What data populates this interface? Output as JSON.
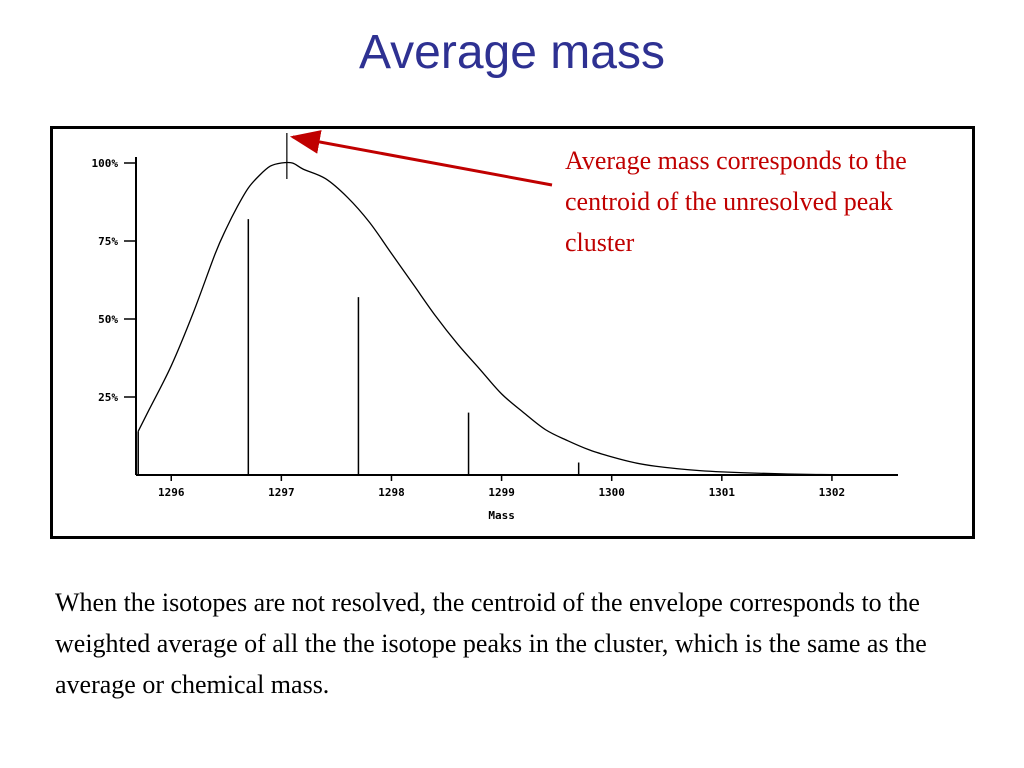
{
  "title": "Average mass",
  "annotation": "Average mass corresponds to the centroid of the unresolved peak cluster",
  "caption": "When the isotopes are not resolved, the centroid of the envelope corresponds to the weighted average of all the the isotope peaks in the cluster, which is the same as the average or chemical mass.",
  "colors": {
    "title": "#2e3192",
    "annotation": "#c00000",
    "arrow": "#c00000"
  },
  "chart_data": {
    "type": "line",
    "xlabel": "Mass",
    "ylabel": "",
    "xlim": [
      1295.68,
      1302.6
    ],
    "ylim": [
      0,
      100
    ],
    "x_ticks": [
      1296,
      1297,
      1298,
      1299,
      1300,
      1301,
      1302
    ],
    "y_ticks": [
      25,
      50,
      75,
      100
    ],
    "y_tick_labels": [
      "25%",
      "50%",
      "75%",
      "100%"
    ],
    "grid": false,
    "envelope": {
      "x": [
        1295.7,
        1295.8,
        1296.0,
        1296.2,
        1296.4,
        1296.5,
        1296.6,
        1296.7,
        1296.8,
        1296.9,
        1297.0,
        1297.1,
        1297.2,
        1297.4,
        1297.6,
        1297.8,
        1298.0,
        1298.2,
        1298.4,
        1298.6,
        1298.8,
        1299.0,
        1299.2,
        1299.4,
        1299.6,
        1299.8,
        1300.0,
        1300.2,
        1300.4,
        1300.6,
        1300.8,
        1301.0,
        1301.3,
        1301.6,
        1301.9,
        1302.2,
        1302.3
      ],
      "y": [
        14,
        21,
        35,
        52,
        71,
        79,
        86,
        92,
        96,
        99,
        100,
        100,
        98,
        95,
        89,
        81,
        71,
        61,
        51,
        42,
        34,
        26,
        20,
        14.5,
        11,
        8,
        5.8,
        4,
        2.8,
        2,
        1.4,
        1.0,
        0.6,
        0.3,
        0.15,
        0.05,
        0
      ]
    },
    "sticks": {
      "x": [
        1295.7,
        1296.7,
        1297.7,
        1298.7,
        1299.7
      ],
      "y": [
        14,
        82,
        57,
        20,
        4
      ]
    },
    "average_mass_marker": 1297.05
  }
}
